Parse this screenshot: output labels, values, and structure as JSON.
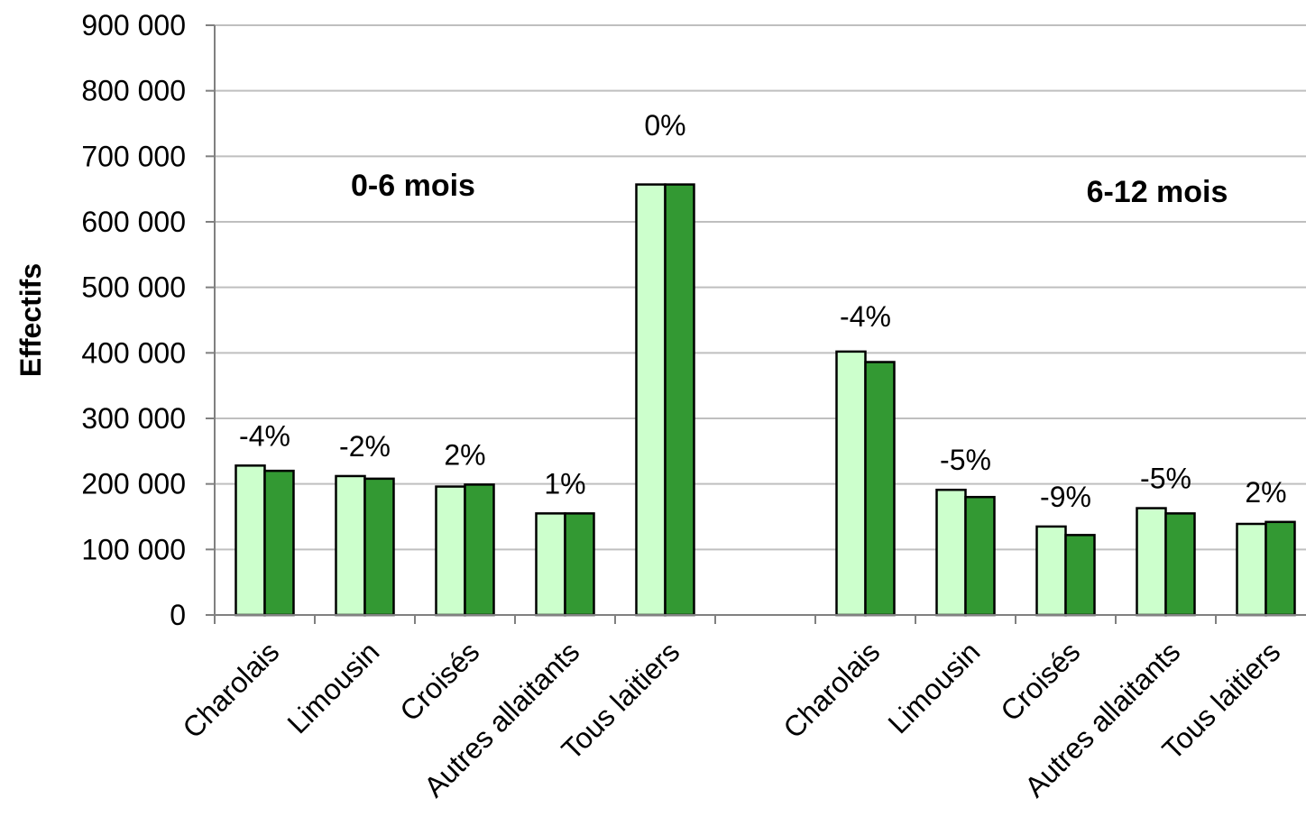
{
  "chart_data": {
    "type": "bar",
    "title": "",
    "xlabel": "",
    "ylabel": "Effectifs",
    "ylim": [
      0,
      900000
    ],
    "yticks": [
      0,
      100000,
      200000,
      300000,
      400000,
      500000,
      600000,
      700000,
      800000,
      900000
    ],
    "ytick_labels": [
      "0",
      "100 000",
      "200 000",
      "300 000",
      "400 000",
      "500 000",
      "600 000",
      "700 000",
      "800 000",
      "900 000"
    ],
    "grid": true,
    "legend": "none",
    "categories": [
      "Charolais",
      "Limousin",
      "Croisés",
      "Autres allaitants",
      "Tous laitiers",
      "",
      "Charolais",
      "Limousin",
      "Croisés",
      "Autres allaitants",
      "Tous laitiers"
    ],
    "series": [
      {
        "color": "#ccffcc",
        "values": [
          228000,
          212000,
          196000,
          155000,
          657000,
          null,
          402000,
          191000,
          135000,
          163000,
          139000
        ]
      },
      {
        "color": "#339933",
        "values": [
          220000,
          208000,
          199000,
          155000,
          657000,
          null,
          386000,
          180000,
          122000,
          155000,
          142000
        ]
      }
    ],
    "data_labels": [
      "-4%",
      "-2%",
      "2%",
      "1%",
      "0%",
      "",
      "-4%",
      "-5%",
      "-9%",
      "-5%",
      "2%"
    ],
    "group_labels": [
      "0-6 mois",
      "6-12 mois"
    ]
  }
}
